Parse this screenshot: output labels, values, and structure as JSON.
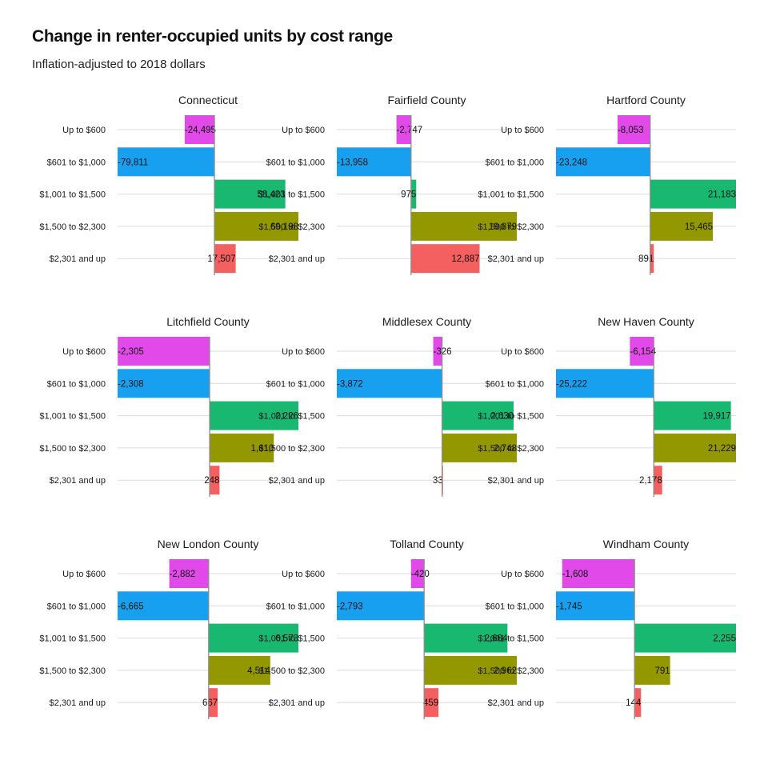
{
  "title": "Change in renter-occupied units by cost range",
  "subtitle": "Inflation-adjusted to 2018 dollars",
  "chart_data": {
    "type": "bar",
    "orientation": "horizontal",
    "facet": true,
    "categories": [
      "Up to $600",
      "$601 to $1,000",
      "$1,001 to $1,500",
      "$1,500 to $2,300",
      "$2,301 and up"
    ],
    "colors": [
      "#e14ae8",
      "#18a0f0",
      "#18b870",
      "#949800",
      "#f45f5f"
    ],
    "grid": true,
    "panels": [
      {
        "name": "Connecticut",
        "values": [
          -24495,
          -79811,
          58423,
          69198,
          17507
        ],
        "labels": [
          "-24,495",
          "-79,811",
          "58,423",
          "69,198",
          "17,507"
        ]
      },
      {
        "name": "Fairfield County",
        "values": [
          -2747,
          -13958,
          975,
          19879,
          12887
        ],
        "labels": [
          "-2,747",
          "-13,958",
          "975",
          "19,879",
          "12,887"
        ]
      },
      {
        "name": "Hartford County",
        "values": [
          -8053,
          -23248,
          21183,
          15465,
          891
        ],
        "labels": [
          "-8,053",
          "-23,248",
          "21,183",
          "15,465",
          "891"
        ]
      },
      {
        "name": "Litchfield County",
        "values": [
          -2305,
          -2308,
          2226,
          1610,
          248
        ],
        "labels": [
          "-2,305",
          "-2,308",
          "2,226",
          "1,610",
          "248"
        ]
      },
      {
        "name": "Middlesex County",
        "values": [
          -326,
          -3872,
          2630,
          2748,
          33
        ],
        "labels": [
          "-326",
          "-3,872",
          "2,630",
          "2,748",
          "33"
        ]
      },
      {
        "name": "New Haven County",
        "values": [
          -6154,
          -25222,
          19917,
          21229,
          2178
        ],
        "labels": [
          "-6,154",
          "-25,222",
          "19,917",
          "21,229",
          "2,178"
        ]
      },
      {
        "name": "New London County",
        "values": [
          -2882,
          -6665,
          6573,
          4514,
          667
        ],
        "labels": [
          "-2,882",
          "-6,665",
          "6,573",
          "4,514",
          "667"
        ]
      },
      {
        "name": "Tolland County",
        "values": [
          -420,
          -2793,
          2664,
          2962,
          459
        ],
        "labels": [
          "-420",
          "-2,793",
          "2,664",
          "2,962",
          "459"
        ]
      },
      {
        "name": "Windham County",
        "values": [
          -1608,
          -1745,
          2255,
          791,
          144
        ],
        "labels": [
          "-1,608",
          "-1,745",
          "2,255",
          "791",
          "144"
        ]
      }
    ]
  }
}
